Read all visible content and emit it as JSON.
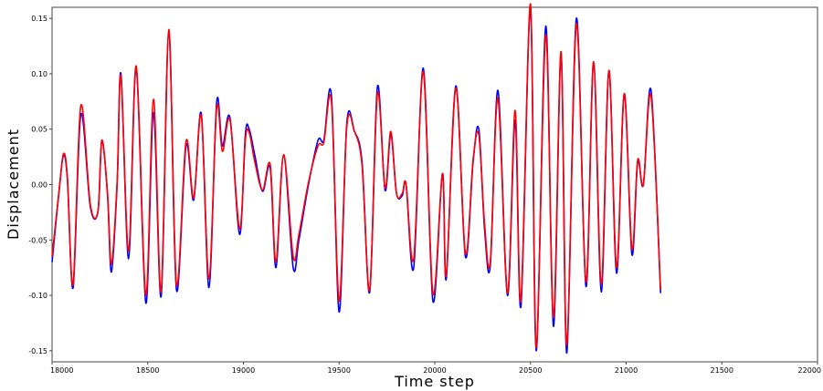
{
  "chart_data": {
    "type": "line",
    "title": "",
    "xlabel": "Time step",
    "ylabel": "Displacement",
    "xlim": [
      18000,
      22000
    ],
    "ylim": [
      -0.16,
      0.16
    ],
    "x_ticks": [
      18000,
      18500,
      19000,
      19500,
      20000,
      20500,
      21000,
      21500,
      22000
    ],
    "y_ticks": [
      -0.15,
      -0.1,
      -0.05,
      0.0,
      0.05,
      0.1,
      0.15
    ],
    "y_tick_labels": [
      "-0.15",
      "-0.10",
      "-0.05",
      "0.00",
      "0.05",
      "0.10",
      "0.15"
    ],
    "grid": false,
    "legend": "none",
    "series": [
      {
        "color": "#0000ff",
        "points": [
          [
            18000,
            -0.07
          ],
          [
            18040,
            0.0
          ],
          [
            18060,
            0.026
          ],
          [
            18080,
            0.005
          ],
          [
            18110,
            -0.093
          ],
          [
            18150,
            0.063
          ],
          [
            18200,
            -0.02
          ],
          [
            18240,
            -0.024
          ],
          [
            18260,
            0.04
          ],
          [
            18290,
            -0.01
          ],
          [
            18310,
            -0.079
          ],
          [
            18340,
            0.0
          ],
          [
            18360,
            0.1
          ],
          [
            18400,
            -0.067
          ],
          [
            18440,
            0.105
          ],
          [
            18490,
            -0.107
          ],
          [
            18530,
            0.065
          ],
          [
            18570,
            -0.101
          ],
          [
            18610,
            0.138
          ],
          [
            18650,
            -0.095
          ],
          [
            18700,
            0.035
          ],
          [
            18740,
            -0.014
          ],
          [
            18780,
            0.064
          ],
          [
            18820,
            -0.093
          ],
          [
            18860,
            0.074
          ],
          [
            18890,
            0.035
          ],
          [
            18930,
            0.06
          ],
          [
            18980,
            -0.045
          ],
          [
            19010,
            0.045
          ],
          [
            19030,
            0.05
          ],
          [
            19060,
            0.026
          ],
          [
            19100,
            -0.006
          ],
          [
            19140,
            0.015
          ],
          [
            19170,
            -0.075
          ],
          [
            19210,
            0.026
          ],
          [
            19260,
            -0.075
          ],
          [
            19290,
            -0.05
          ],
          [
            19340,
            0.0
          ],
          [
            19390,
            0.04
          ],
          [
            19420,
            0.04
          ],
          [
            19460,
            0.08
          ],
          [
            19500,
            -0.115
          ],
          [
            19540,
            0.055
          ],
          [
            19580,
            0.048
          ],
          [
            19620,
            0.02
          ],
          [
            19660,
            -0.097
          ],
          [
            19700,
            0.088
          ],
          [
            19740,
            -0.005
          ],
          [
            19770,
            0.045
          ],
          [
            19800,
            -0.008
          ],
          [
            19830,
            -0.01
          ],
          [
            19850,
            0.0
          ],
          [
            19890,
            -0.075
          ],
          [
            19940,
            0.105
          ],
          [
            19990,
            -0.105
          ],
          [
            20040,
            0.01
          ],
          [
            20060,
            -0.085
          ],
          [
            20110,
            0.089
          ],
          [
            20160,
            -0.065
          ],
          [
            20200,
            0.02
          ],
          [
            20230,
            0.05
          ],
          [
            20260,
            -0.04
          ],
          [
            20290,
            -0.073
          ],
          [
            20330,
            0.085
          ],
          [
            20380,
            -0.1
          ],
          [
            20420,
            0.058
          ],
          [
            20450,
            -0.11
          ],
          [
            20500,
            0.16
          ],
          [
            20530,
            -0.15
          ],
          [
            20580,
            0.143
          ],
          [
            20620,
            -0.128
          ],
          [
            20660,
            0.118
          ],
          [
            20690,
            -0.152
          ],
          [
            20740,
            0.15
          ],
          [
            20790,
            -0.092
          ],
          [
            20830,
            0.11
          ],
          [
            20870,
            -0.097
          ],
          [
            20910,
            0.103
          ],
          [
            20950,
            -0.08
          ],
          [
            20990,
            0.082
          ],
          [
            21030,
            -0.063
          ],
          [
            21060,
            0.02
          ],
          [
            21090,
            0.0
          ],
          [
            21130,
            0.085
          ],
          [
            21180,
            -0.098
          ]
        ]
      },
      {
        "color": "#ff0000",
        "points": [
          [
            18000,
            -0.065
          ],
          [
            18040,
            0.0
          ],
          [
            18060,
            0.028
          ],
          [
            18080,
            0.007
          ],
          [
            18110,
            -0.09
          ],
          [
            18150,
            0.071
          ],
          [
            18200,
            -0.018
          ],
          [
            18240,
            -0.024
          ],
          [
            18260,
            0.04
          ],
          [
            18290,
            -0.008
          ],
          [
            18310,
            -0.072
          ],
          [
            18340,
            0.002
          ],
          [
            18360,
            0.098
          ],
          [
            18400,
            -0.06
          ],
          [
            18440,
            0.107
          ],
          [
            18490,
            -0.1
          ],
          [
            18530,
            0.077
          ],
          [
            18570,
            -0.097
          ],
          [
            18610,
            0.14
          ],
          [
            18650,
            -0.09
          ],
          [
            18700,
            0.039
          ],
          [
            18740,
            -0.012
          ],
          [
            18780,
            0.062
          ],
          [
            18820,
            -0.085
          ],
          [
            18860,
            0.069
          ],
          [
            18890,
            0.03
          ],
          [
            18930,
            0.058
          ],
          [
            18980,
            -0.04
          ],
          [
            19010,
            0.04
          ],
          [
            19030,
            0.047
          ],
          [
            19060,
            0.02
          ],
          [
            19100,
            -0.005
          ],
          [
            19140,
            0.018
          ],
          [
            19170,
            -0.07
          ],
          [
            19210,
            0.027
          ],
          [
            19260,
            -0.065
          ],
          [
            19290,
            -0.045
          ],
          [
            19340,
            0.002
          ],
          [
            19390,
            0.035
          ],
          [
            19420,
            0.038
          ],
          [
            19460,
            0.075
          ],
          [
            19500,
            -0.105
          ],
          [
            19540,
            0.052
          ],
          [
            19580,
            0.048
          ],
          [
            19620,
            0.017
          ],
          [
            19660,
            -0.095
          ],
          [
            19700,
            0.082
          ],
          [
            19740,
            -0.003
          ],
          [
            19770,
            0.048
          ],
          [
            19800,
            -0.008
          ],
          [
            19830,
            -0.008
          ],
          [
            19850,
            0.0
          ],
          [
            19890,
            -0.067
          ],
          [
            19940,
            0.102
          ],
          [
            19990,
            -0.098
          ],
          [
            20040,
            0.01
          ],
          [
            20060,
            -0.082
          ],
          [
            20110,
            0.087
          ],
          [
            20160,
            -0.062
          ],
          [
            20200,
            0.022
          ],
          [
            20230,
            0.045
          ],
          [
            20260,
            -0.035
          ],
          [
            20290,
            -0.07
          ],
          [
            20330,
            0.078
          ],
          [
            20380,
            -0.098
          ],
          [
            20420,
            0.067
          ],
          [
            20450,
            -0.105
          ],
          [
            20500,
            0.163
          ],
          [
            20530,
            -0.147
          ],
          [
            20580,
            0.135
          ],
          [
            20620,
            -0.12
          ],
          [
            20660,
            0.12
          ],
          [
            20690,
            -0.145
          ],
          [
            20740,
            0.145
          ],
          [
            20790,
            -0.088
          ],
          [
            20830,
            0.111
          ],
          [
            20870,
            -0.09
          ],
          [
            20910,
            0.103
          ],
          [
            20950,
            -0.075
          ],
          [
            20990,
            0.082
          ],
          [
            21030,
            -0.058
          ],
          [
            21060,
            0.022
          ],
          [
            21090,
            0.0
          ],
          [
            21130,
            0.08
          ],
          [
            21180,
            -0.095
          ]
        ]
      }
    ]
  }
}
